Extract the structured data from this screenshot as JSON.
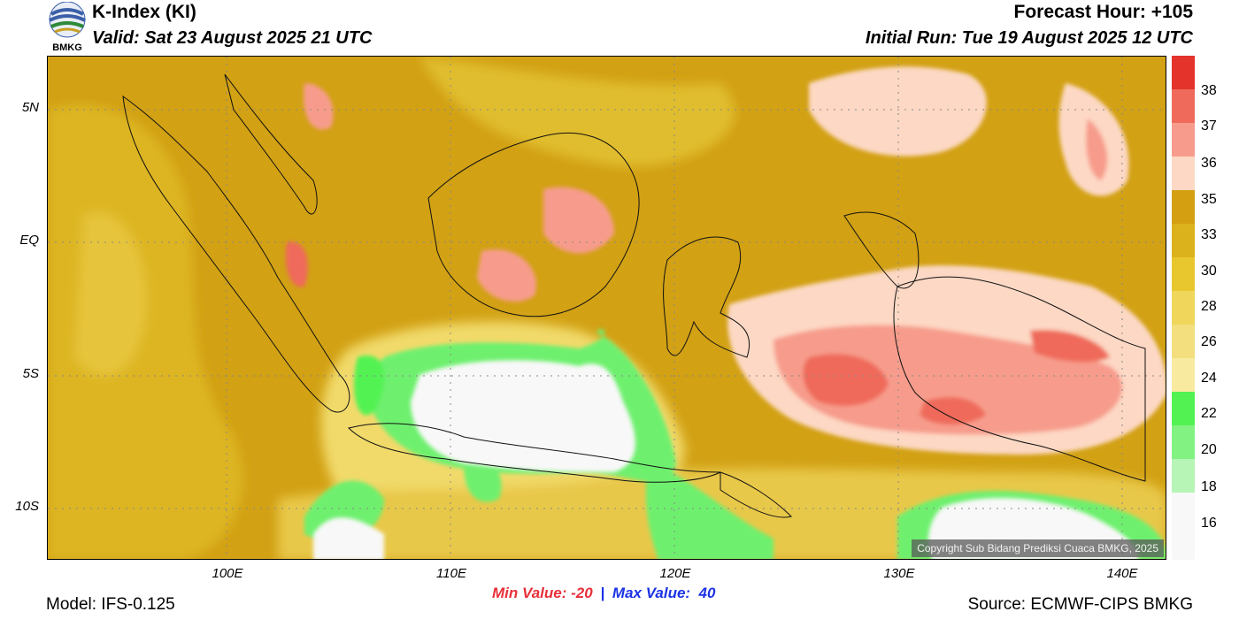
{
  "header": {
    "title": "K-Index (KI)",
    "valid": "Valid: Sat 23 August 2025 21 UTC",
    "forecast_hour": "Forecast Hour: +105",
    "initial_run": "Initial Run: Tue 19 August 2025 12 UTC"
  },
  "logo": {
    "text": "BMKG"
  },
  "map": {
    "lat_labels": [
      "5N",
      "EQ",
      "5S",
      "10S"
    ],
    "lon_labels": [
      "100E",
      "110E",
      "120E",
      "130E",
      "140E"
    ],
    "lat_range": [
      -12,
      7
    ],
    "lon_range": [
      92,
      142
    ],
    "copyright": "Copyright Sub Bidang Prediksi Cuaca BMKG, 2025"
  },
  "colorbar": {
    "labels": [
      "38",
      "37",
      "36",
      "35",
      "33",
      "30",
      "28",
      "26",
      "24",
      "22",
      "20",
      "18",
      "16"
    ],
    "colors": [
      "#e3332a",
      "#ef6a5a",
      "#f79c8c",
      "#fdd8c4",
      "#d4a012",
      "#dcb21c",
      "#e8c62e",
      "#f0d65a",
      "#f3df7e",
      "#f8eb9f",
      "#52f252",
      "#82f282",
      "#b6f5b6",
      "#f8f8f8"
    ]
  },
  "footer": {
    "min_value": "Min Value: -20",
    "separator": "|",
    "max_value": "Max Value:  40",
    "model": "Model: IFS-0.125",
    "source": "Source: ECMWF-CIPS BMKG"
  }
}
